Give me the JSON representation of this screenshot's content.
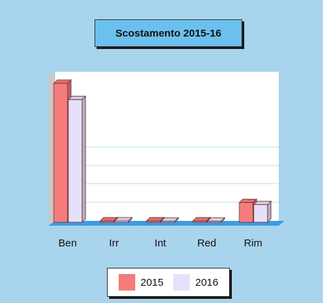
{
  "chart_data": {
    "type": "bar",
    "title": "Scostamento 2015-16",
    "categories": [
      "Ben",
      "Irr",
      "Int",
      "Red",
      "Rim"
    ],
    "series": [
      {
        "name": "2015",
        "color": "#f47c7c",
        "values": [
          205,
          2,
          2,
          2,
          29
        ]
      },
      {
        "name": "2016",
        "color": "#e6e0fb",
        "values": [
          181,
          2,
          1,
          1,
          26
        ]
      }
    ],
    "ylim": [
      0,
      220
    ],
    "grid": true,
    "legend": "bottom"
  }
}
